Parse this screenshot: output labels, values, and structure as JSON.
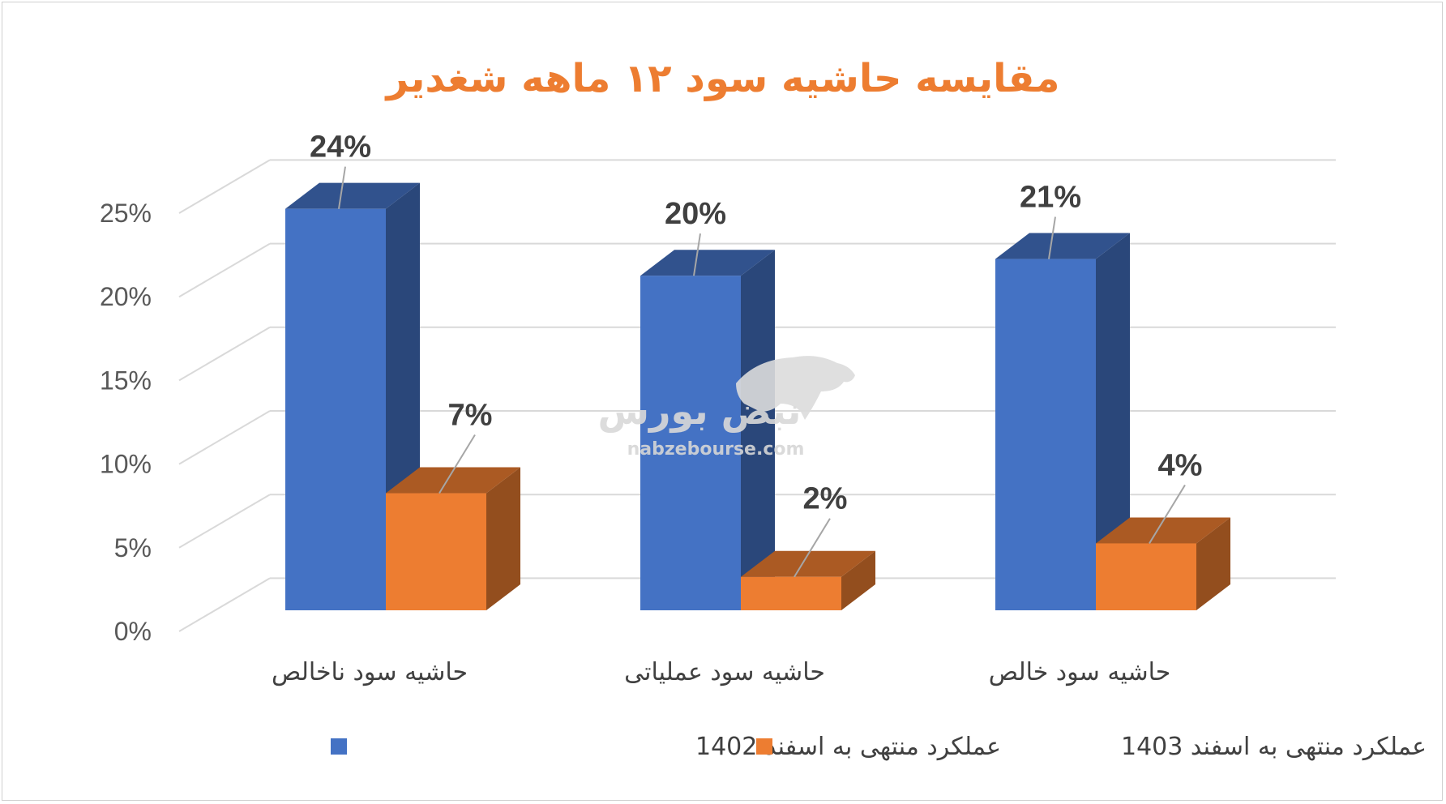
{
  "chart_data": {
    "type": "bar",
    "title": "مقایسه حاشیه سود ۱۲ ماهه شغدیر",
    "categories": [
      "حاشیه سود ناخالص",
      "حاشیه سود عملیاتی",
      "حاشیه سود خالص"
    ],
    "series": [
      {
        "name": "عملکرد منتهی به اسفند 1402",
        "values": [
          24,
          20,
          21
        ],
        "labels": [
          "24%",
          "20%",
          "21%"
        ],
        "color": "#4472c4"
      },
      {
        "name": "عملکرد منتهی به اسفند 1403",
        "values": [
          7,
          2,
          4
        ],
        "labels": [
          "7%",
          "2%",
          "4%"
        ],
        "color": "#ed7d31"
      }
    ],
    "y_ticks": [
      "0%",
      "5%",
      "10%",
      "15%",
      "20%",
      "25%"
    ],
    "ylim": [
      0,
      25
    ],
    "grid": true,
    "legend_position": "bottom"
  },
  "watermark": {
    "logo_text": "نبض بورس",
    "site": "nabzebourse.com"
  }
}
